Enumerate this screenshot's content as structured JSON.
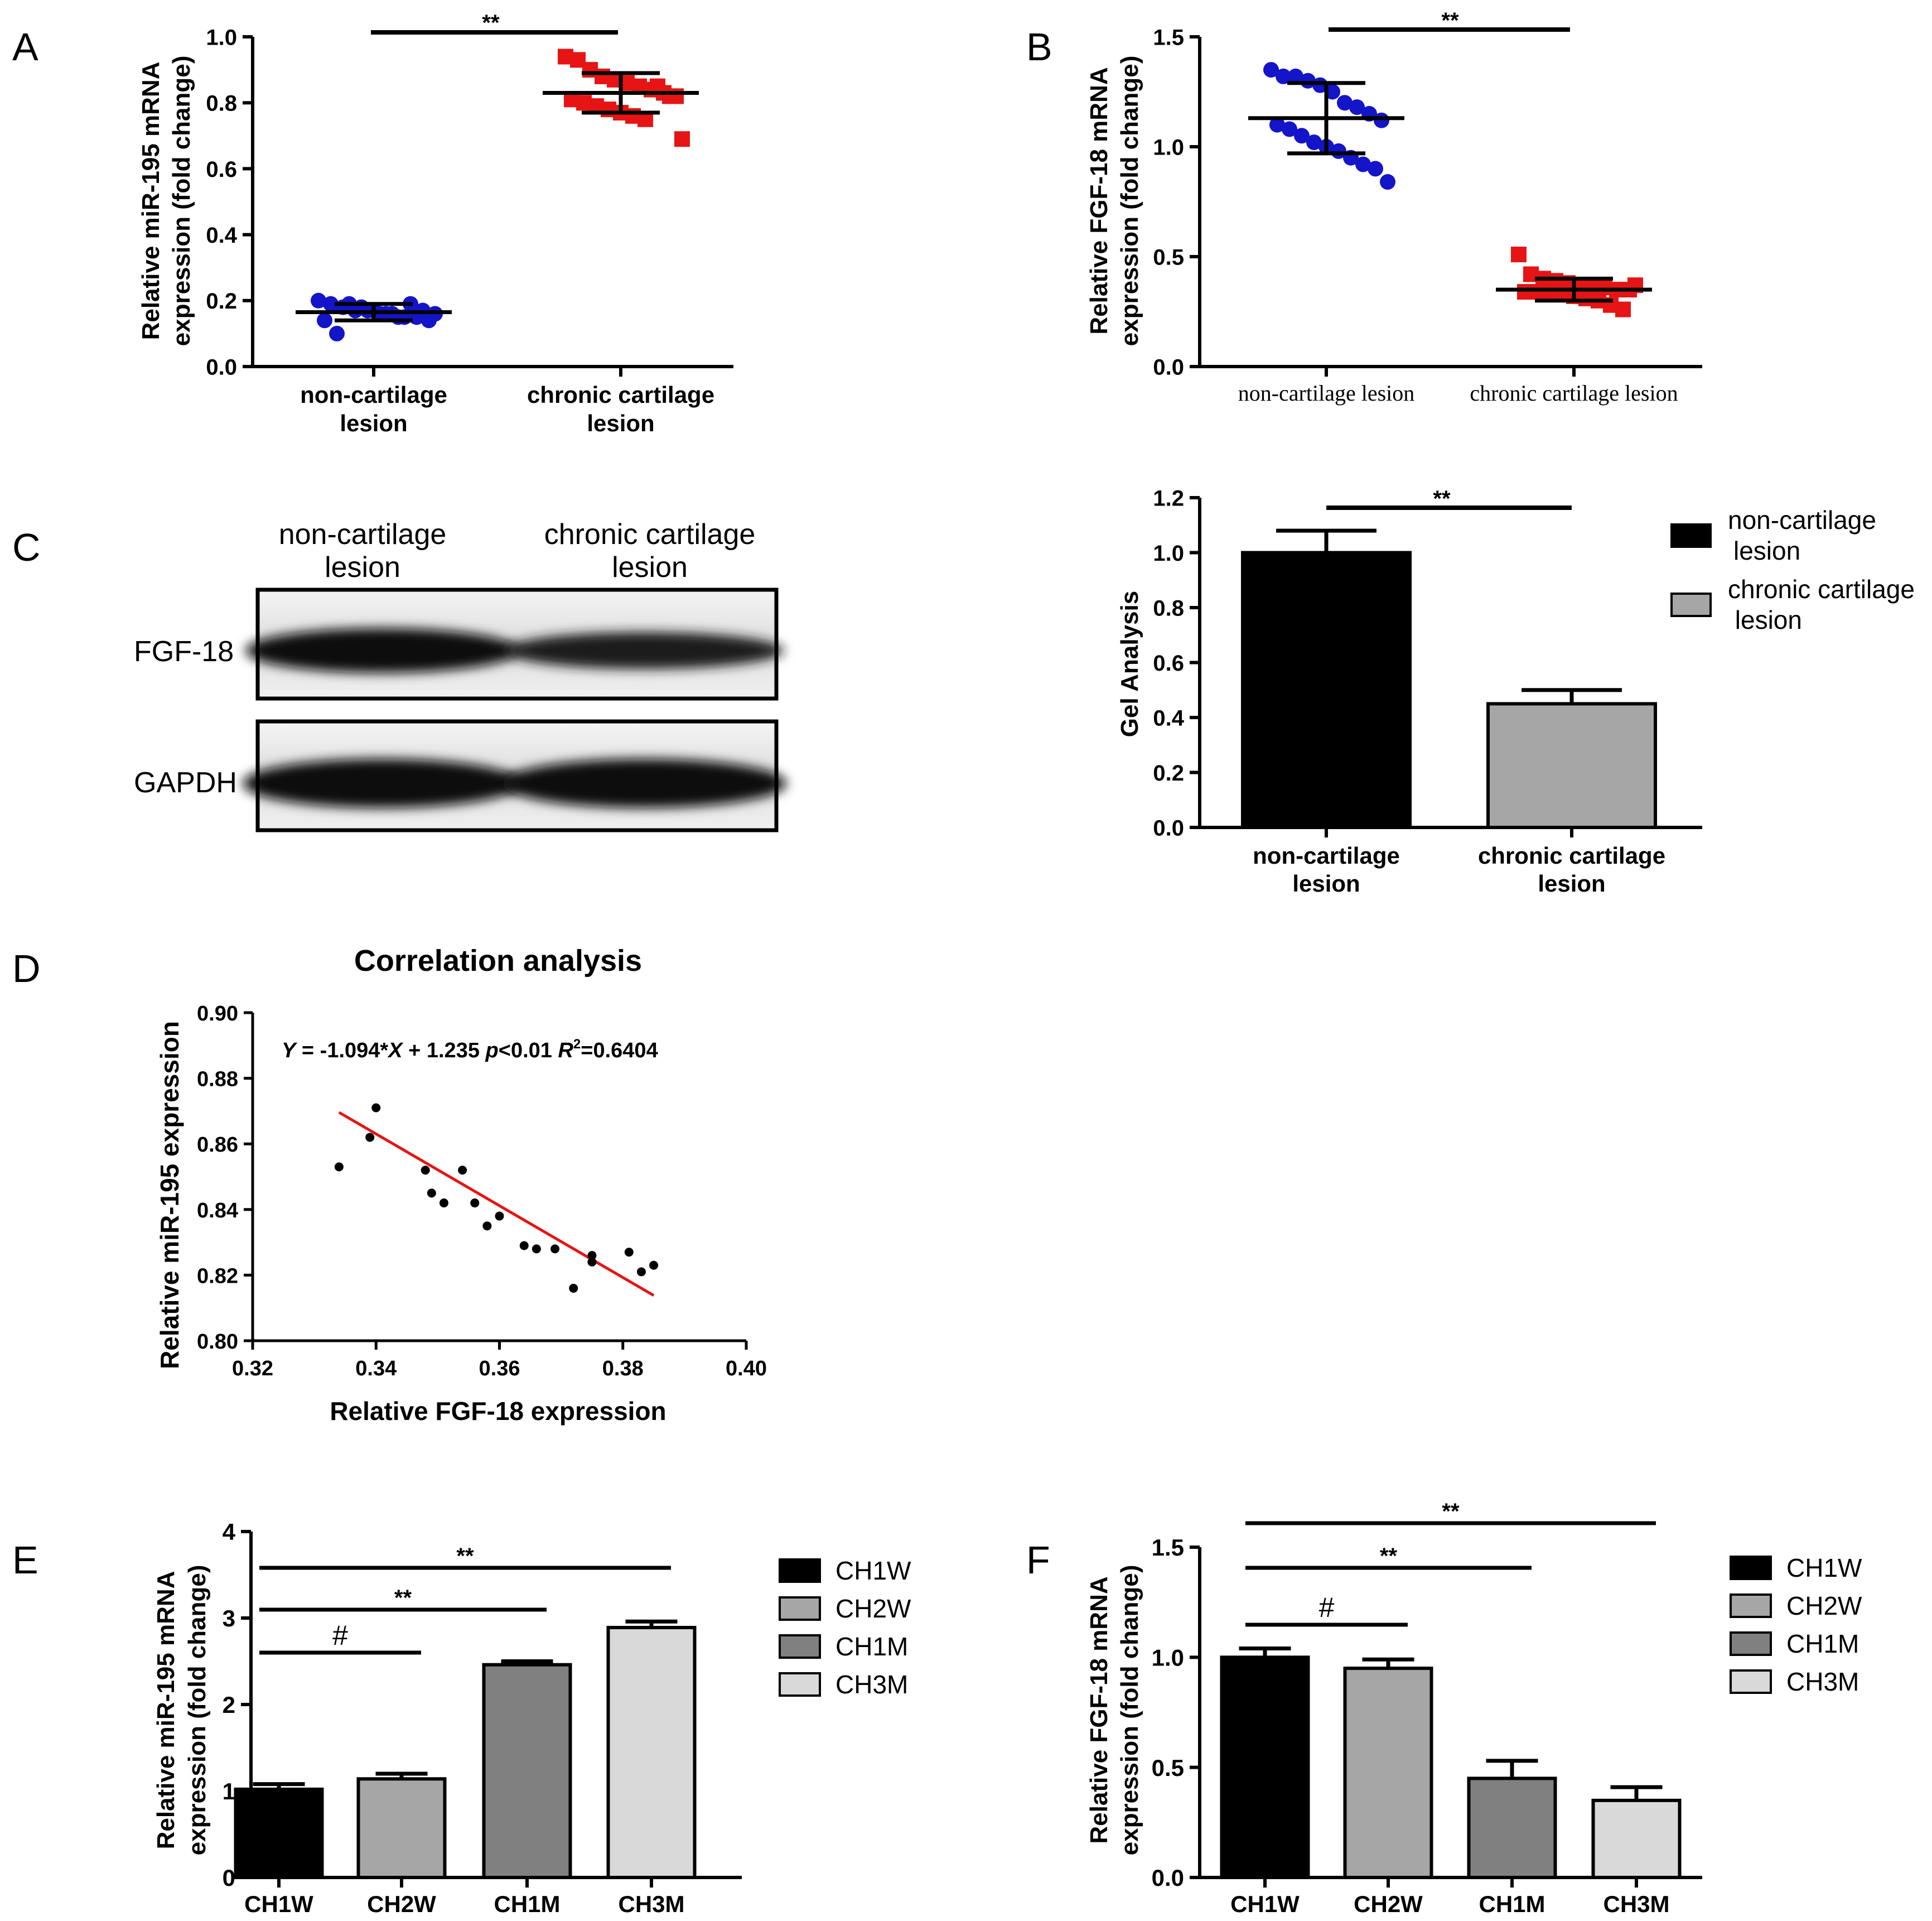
{
  "figure_title": "",
  "chart_data": [
    {
      "panel": "A",
      "type": "scatter",
      "subtype": "dot-plot with mean and SD",
      "ylabel_line1": "Relative miR-195 mRNA",
      "ylabel_line2": "expression (fold change)",
      "ylim": [
        0,
        1.0
      ],
      "yticks": [
        "0.0",
        "0.2",
        "0.4",
        "0.6",
        "0.8",
        "1.0"
      ],
      "significance": "**",
      "groups": [
        {
          "label_line1": "non-cartilage",
          "label_line2": "lesion",
          "color": "#1414c8",
          "marker": "circle",
          "mean": 0.165,
          "sd": 0.025,
          "points": [
            0.2,
            0.19,
            0.18,
            0.17,
            0.17,
            0.16,
            0.16,
            0.15,
            0.15,
            0.14,
            0.14,
            0.1,
            0.19,
            0.18,
            0.17,
            0.16,
            0.15,
            0.19,
            0.17,
            0.16
          ]
        },
        {
          "label_line1": "chronic cartilage",
          "label_line2": "lesion",
          "color": "#e61414",
          "marker": "square",
          "mean": 0.83,
          "sd": 0.06,
          "points": [
            0.94,
            0.93,
            0.9,
            0.88,
            0.87,
            0.86,
            0.85,
            0.84,
            0.83,
            0.82,
            0.81,
            0.8,
            0.79,
            0.78,
            0.77,
            0.76,
            0.75,
            0.85,
            0.82,
            0.69
          ]
        }
      ]
    },
    {
      "panel": "B",
      "type": "scatter",
      "subtype": "dot-plot with mean and SD",
      "ylabel_line1": "Relative FGF-18 mRNA",
      "ylabel_line2": "expression (fold change)",
      "ylim": [
        0,
        1.5
      ],
      "yticks": [
        "0.0",
        "0.5",
        "1.0",
        "1.5"
      ],
      "significance": "**",
      "groups": [
        {
          "label": "non-cartilage lesion",
          "color": "#1414c8",
          "marker": "circle",
          "mean": 1.13,
          "sd": 0.16,
          "points": [
            1.35,
            1.32,
            1.32,
            1.3,
            1.28,
            1.25,
            1.2,
            1.18,
            1.15,
            1.12,
            1.1,
            1.08,
            1.05,
            1.02,
            1.0,
            0.98,
            0.95,
            0.92,
            0.9,
            0.84
          ]
        },
        {
          "label": "chronic cartilage lesion",
          "color": "#e61414",
          "marker": "square",
          "mean": 0.35,
          "sd": 0.05,
          "points": [
            0.51,
            0.42,
            0.4,
            0.39,
            0.38,
            0.37,
            0.36,
            0.36,
            0.35,
            0.35,
            0.34,
            0.34,
            0.33,
            0.33,
            0.32,
            0.31,
            0.3,
            0.28,
            0.26,
            0.37
          ]
        }
      ]
    },
    {
      "panel": "C",
      "type": "bar",
      "ylabel": "Gel Analysis",
      "ylim": [
        0,
        1.2
      ],
      "yticks": [
        "0.0",
        "0.2",
        "0.4",
        "0.6",
        "0.8",
        "1.0",
        "1.2"
      ],
      "significance": "**",
      "categories": [
        {
          "line1": "non-cartilage",
          "line2": "lesion"
        },
        {
          "line1": "chronic cartilage",
          "line2": "lesion"
        }
      ],
      "values": [
        1.0,
        0.45
      ],
      "errors": [
        0.08,
        0.05
      ],
      "colors": [
        "#000000",
        "#a6a6a6"
      ],
      "legend": [
        {
          "line1": "non-cartilage",
          "line2": "lesion",
          "color": "#000000"
        },
        {
          "line1": "chronic cartilage",
          "line2": " lesion",
          "color": "#a6a6a6"
        }
      ],
      "legend_position": "right"
    },
    {
      "panel": "D",
      "type": "scatter",
      "title": "Correlation analysis",
      "xlabel": "Relative FGF-18 expression",
      "ylabel": "Relative miR-195 expression",
      "xlim": [
        0.32,
        0.4
      ],
      "ylim": [
        0.8,
        0.9
      ],
      "xticks": [
        "0.32",
        "0.34",
        "0.36",
        "0.38",
        "0.40"
      ],
      "yticks": [
        "0.80",
        "0.82",
        "0.84",
        "0.86",
        "0.88",
        "0.90"
      ],
      "equation": {
        "y": "Y",
        "eq_a": " = -1.094*",
        "x": "X",
        "eq_b": " + 1.235 ",
        "p": "p",
        "p_val": "<0.01 ",
        "r": "R",
        "r_exp": "2",
        "r_val": "=0.6404"
      },
      "slope": -1.094,
      "intercept": 1.235,
      "fit_x_range": [
        0.334,
        0.385
      ],
      "line_color": "#e61414",
      "x": [
        0.334,
        0.339,
        0.34,
        0.348,
        0.349,
        0.351,
        0.354,
        0.356,
        0.358,
        0.36,
        0.364,
        0.366,
        0.369,
        0.372,
        0.375,
        0.375,
        0.381,
        0.383,
        0.385
      ],
      "y": [
        0.853,
        0.862,
        0.871,
        0.852,
        0.845,
        0.842,
        0.852,
        0.842,
        0.835,
        0.838,
        0.829,
        0.828,
        0.828,
        0.816,
        0.826,
        0.824,
        0.827,
        0.821,
        0.823
      ]
    },
    {
      "panel": "E",
      "type": "bar",
      "ylabel_line1": "Relative miR-195 mRNA",
      "ylabel_line2": "expression (fold change)",
      "ylim": [
        0,
        4
      ],
      "yticks": [
        "0",
        "1",
        "2",
        "3",
        "4"
      ],
      "categories": [
        "CH1W",
        "CH2W",
        "CH1M",
        "CH3M"
      ],
      "values": [
        1.02,
        1.14,
        2.46,
        2.89
      ],
      "errors": [
        0.06,
        0.06,
        0.04,
        0.07
      ],
      "colors": [
        "#000000",
        "#a6a6a6",
        "#808080",
        "#d9d9d9"
      ],
      "comparisons": [
        {
          "from": 0,
          "to": 1,
          "label": "#"
        },
        {
          "from": 0,
          "to": 2,
          "label": "**"
        },
        {
          "from": 0,
          "to": 3,
          "label": "**"
        }
      ],
      "legend": [
        {
          "label": "CH1W",
          "color": "#000000"
        },
        {
          "label": "CH2W",
          "color": "#a6a6a6"
        },
        {
          "label": "CH1M",
          "color": "#808080"
        },
        {
          "label": "CH3M",
          "color": "#d9d9d9"
        }
      ],
      "legend_position": "right"
    },
    {
      "panel": "F",
      "type": "bar",
      "ylabel_line1": "Relative FGF-18 mRNA",
      "ylabel_line2": "expression (fold change)",
      "ylim": [
        0,
        1.5
      ],
      "yticks": [
        "0.0",
        "0.5",
        "1.0",
        "1.5"
      ],
      "categories": [
        "CH1W",
        "CH2W",
        "CH1M",
        "CH3M"
      ],
      "values": [
        1.0,
        0.95,
        0.45,
        0.35
      ],
      "errors": [
        0.04,
        0.04,
        0.08,
        0.06
      ],
      "colors": [
        "#000000",
        "#a6a6a6",
        "#808080",
        "#d9d9d9"
      ],
      "comparisons": [
        {
          "from": 0,
          "to": 1,
          "label": "#"
        },
        {
          "from": 0,
          "to": 2,
          "label": "**"
        },
        {
          "from": 0,
          "to": 3,
          "label": "**"
        }
      ],
      "legend": [
        {
          "label": "CH1W",
          "color": "#000000"
        },
        {
          "label": "CH2W",
          "color": "#a6a6a6"
        },
        {
          "label": "CH1M",
          "color": "#808080"
        },
        {
          "label": "CH3M",
          "color": "#d9d9d9"
        }
      ],
      "legend_position": "right"
    }
  ],
  "panel_labels": [
    "A",
    "B",
    "C",
    "D",
    "E",
    "F"
  ],
  "western_blot": {
    "lanes": [
      {
        "line1": "non-cartilage",
        "line2": "lesion"
      },
      {
        "line1": "chronic cartilage",
        "line2": "lesion"
      }
    ],
    "rows": [
      "FGF-18",
      "GAPDH"
    ]
  }
}
